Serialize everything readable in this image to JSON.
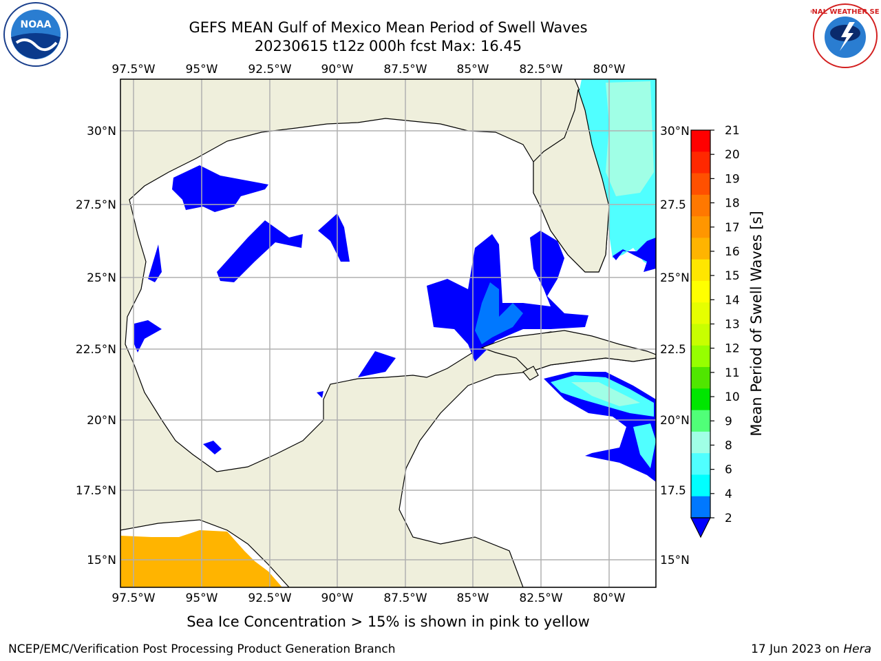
{
  "title": {
    "line1": "GEFS MEAN Gulf of Mexico Mean Period of Swell Waves",
    "line2": "20230615 t12z 000h fcst   Max: 16.45"
  },
  "logos": {
    "left": "noaa-logo",
    "right": "national-weather-service-logo",
    "right_text": "NATIONAL WEATHER SERVICE"
  },
  "map": {
    "lon_ticks": [
      "97.5°W",
      "95°W",
      "92.5°W",
      "90°W",
      "87.5°W",
      "85°W",
      "82.5°W",
      "80°W"
    ],
    "lat_ticks_left": [
      "30°N",
      "27.5°N",
      "25°N",
      "22.5°N",
      "20°N",
      "17.5°N",
      "15°N"
    ],
    "lat_ticks_right": [
      "30°N",
      "27.5",
      "25°N",
      "22.5",
      "20°N",
      "17.5",
      "15°N"
    ],
    "land_color": "#efefdc",
    "ocean_color": "#ffffff",
    "grid_color": "#b0b0b0"
  },
  "colorbar": {
    "label": "Mean Period of Swell Waves [s]",
    "ticks": [
      "21",
      "20",
      "19",
      "18",
      "17",
      "16",
      "15",
      "14",
      "13",
      "12",
      "11",
      "10",
      "9",
      "8",
      "6",
      "4",
      "2"
    ],
    "colors": [
      "#ff0000",
      "#ff2800",
      "#ff5000",
      "#ff7800",
      "#ff9600",
      "#ffb400",
      "#ffe600",
      "#ffff00",
      "#e6ff00",
      "#c8ff00",
      "#96ff00",
      "#50e600",
      "#00e600",
      "#50ff78",
      "#a0ffe6",
      "#50ffff",
      "#00ffff",
      "#0078ff"
    ],
    "extend_color": "#0000ff"
  },
  "footer": {
    "note": "Sea Ice Concentration > 15% is shown in pink to yellow",
    "left": "NCEP/EMC/Verification Post Processing Product Generation Branch",
    "right_date": "17 Jun 2023 on ",
    "right_host": "Hera"
  }
}
